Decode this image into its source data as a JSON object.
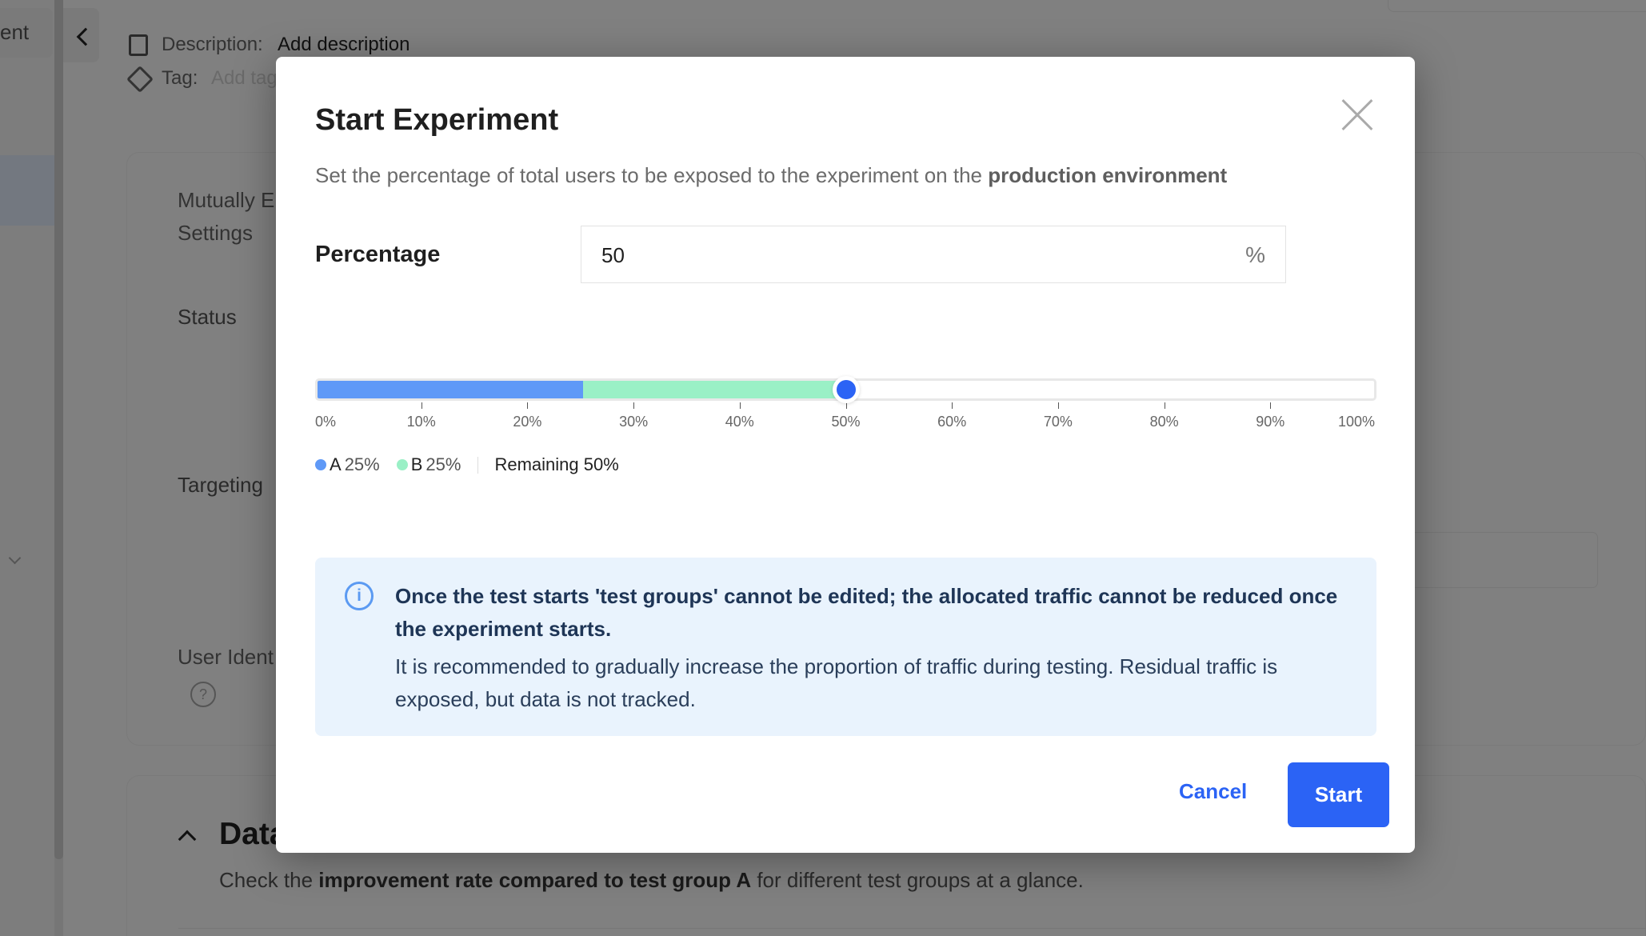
{
  "background": {
    "sidebar_label": "ent",
    "description_label": "Description:",
    "description_value": "Add description",
    "tag_label": "Tag:",
    "tag_placeholder": "Add tag",
    "fields": [
      "Mutually E",
      "Settings",
      "Status",
      "Targeting",
      "User Ident"
    ],
    "data_heading": "Data",
    "data_desc_pre": "Check the ",
    "data_desc_bold": "improvement rate compared to test group A",
    "data_desc_post": " for different test groups at a glance."
  },
  "modal": {
    "title": "Start Experiment",
    "subtitle_pre": "Set the percentage of total users to be exposed to the experiment on the ",
    "subtitle_bold": "production environment",
    "percentage_label": "Percentage",
    "percentage_value": "50",
    "percentage_unit": "%",
    "slider": {
      "value_percent": 50,
      "segments": [
        {
          "name": "A",
          "percent": 25,
          "color": "#5f99f7",
          "label": "A",
          "value_label": "25%"
        },
        {
          "name": "B",
          "percent": 25,
          "color": "#9af0c6",
          "label": "B",
          "value_label": "25%"
        }
      ],
      "ticks": [
        "0%",
        "10%",
        "20%",
        "30%",
        "40%",
        "50%",
        "60%",
        "70%",
        "80%",
        "90%",
        "100%"
      ],
      "remaining_label": "Remaining 50%"
    },
    "info_bold": "Once the test starts 'test groups' cannot be edited; the allocated traffic cannot be reduced once the experiment starts.",
    "info_text": "It is recommended to gradually increase the proportion of traffic during testing. Residual traffic is exposed, but data is not tracked.",
    "cancel_label": "Cancel",
    "start_label": "Start",
    "accent": "#2b63f5"
  }
}
